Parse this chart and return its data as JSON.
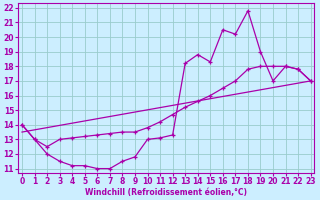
{
  "xlabel": "Windchill (Refroidissement éolien,°C)",
  "bg_color": "#cceeff",
  "line_color": "#aa00aa",
  "grid_color": "#99cccc",
  "xmin": 0,
  "xmax": 23,
  "ymin": 11,
  "ymax": 22,
  "line1_x": [
    0,
    1,
    2,
    3,
    4,
    5,
    6,
    7,
    8,
    9,
    10,
    11,
    12,
    13,
    14,
    15,
    16,
    17,
    18,
    19,
    20,
    21,
    22,
    23
  ],
  "line1_y": [
    14.0,
    13.0,
    12.0,
    11.5,
    11.2,
    11.2,
    11.0,
    11.0,
    11.5,
    11.8,
    13.0,
    13.1,
    13.3,
    18.2,
    18.8,
    18.3,
    20.5,
    20.2,
    21.8,
    19.0,
    17.0,
    18.0,
    17.8,
    17.0
  ],
  "line2_x": [
    0,
    1,
    2,
    3,
    4,
    5,
    6,
    7,
    8,
    9,
    10,
    11,
    12,
    13,
    14,
    15,
    16,
    17,
    18,
    19,
    20,
    21,
    22,
    23
  ],
  "line2_y": [
    14.0,
    13.0,
    12.5,
    13.0,
    13.1,
    13.2,
    13.3,
    13.4,
    13.5,
    13.5,
    13.8,
    14.2,
    14.7,
    15.2,
    15.6,
    16.0,
    16.5,
    17.0,
    17.8,
    18.0,
    18.0,
    18.0,
    17.8,
    17.0
  ],
  "line3_x": [
    0,
    23
  ],
  "line3_y": [
    13.5,
    17.0
  ],
  "xticks": [
    0,
    1,
    2,
    3,
    4,
    5,
    6,
    7,
    8,
    9,
    10,
    11,
    12,
    13,
    14,
    15,
    16,
    17,
    18,
    19,
    20,
    21,
    22,
    23
  ],
  "yticks": [
    11,
    12,
    13,
    14,
    15,
    16,
    17,
    18,
    19,
    20,
    21,
    22
  ],
  "tick_fontsize": 5.5,
  "xlabel_fontsize": 5.5
}
